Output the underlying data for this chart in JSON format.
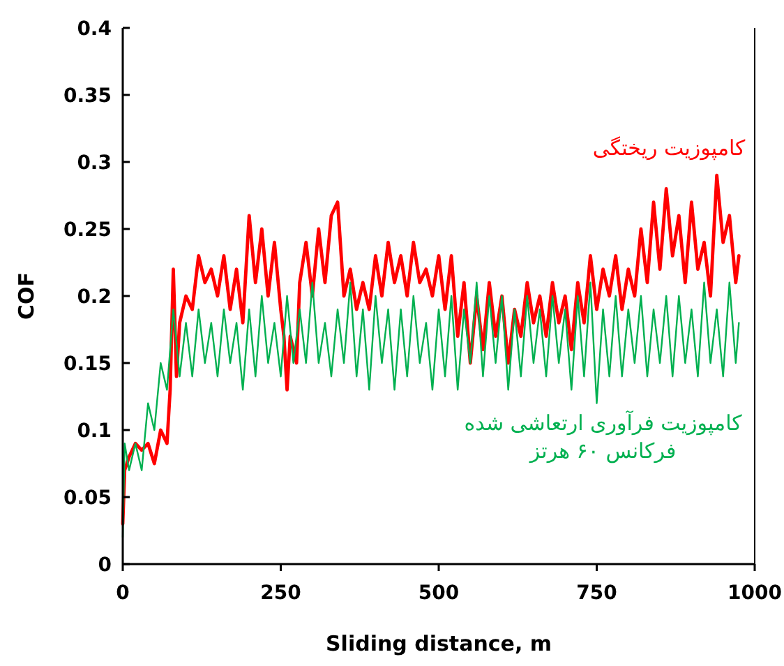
{
  "chart_data": {
    "type": "line",
    "xlabel": "Sliding distance, m",
    "ylabel": "COF",
    "xlim": [
      0,
      1000
    ],
    "ylim": [
      0,
      0.4
    ],
    "xticks": [
      0,
      250,
      500,
      750,
      1000
    ],
    "yticks": [
      0,
      0.05,
      0.1,
      0.15,
      0.2,
      0.25,
      0.3,
      0.35,
      0.4
    ],
    "grid": false,
    "marker": "none",
    "line_style": "solid",
    "series": [
      {
        "name": "کامپوزیت ریختگی",
        "color": "#ff0000",
        "x": [
          0,
          3,
          10,
          20,
          30,
          40,
          50,
          60,
          70,
          75,
          80,
          85,
          90,
          100,
          110,
          120,
          130,
          140,
          150,
          160,
          170,
          180,
          190,
          200,
          210,
          220,
          230,
          240,
          250,
          255,
          260,
          265,
          275,
          280,
          290,
          300,
          310,
          320,
          330,
          340,
          350,
          360,
          370,
          380,
          390,
          400,
          410,
          420,
          430,
          440,
          450,
          460,
          470,
          480,
          490,
          500,
          510,
          520,
          530,
          540,
          550,
          560,
          570,
          580,
          590,
          600,
          610,
          620,
          630,
          640,
          650,
          660,
          670,
          680,
          690,
          700,
          710,
          720,
          730,
          740,
          750,
          760,
          770,
          780,
          790,
          800,
          810,
          820,
          830,
          840,
          850,
          860,
          870,
          880,
          890,
          900,
          910,
          920,
          930,
          940,
          950,
          960,
          970,
          975
        ],
        "values": [
          0.03,
          0.07,
          0.08,
          0.09,
          0.085,
          0.09,
          0.075,
          0.1,
          0.09,
          0.13,
          0.22,
          0.14,
          0.18,
          0.2,
          0.19,
          0.23,
          0.21,
          0.22,
          0.2,
          0.23,
          0.19,
          0.22,
          0.18,
          0.26,
          0.21,
          0.25,
          0.2,
          0.24,
          0.19,
          0.17,
          0.13,
          0.17,
          0.15,
          0.21,
          0.24,
          0.2,
          0.25,
          0.21,
          0.26,
          0.27,
          0.2,
          0.22,
          0.19,
          0.21,
          0.19,
          0.23,
          0.2,
          0.24,
          0.21,
          0.23,
          0.2,
          0.24,
          0.21,
          0.22,
          0.2,
          0.23,
          0.19,
          0.23,
          0.17,
          0.21,
          0.15,
          0.2,
          0.16,
          0.21,
          0.17,
          0.2,
          0.15,
          0.19,
          0.17,
          0.21,
          0.18,
          0.2,
          0.17,
          0.21,
          0.18,
          0.2,
          0.16,
          0.21,
          0.18,
          0.23,
          0.19,
          0.22,
          0.2,
          0.23,
          0.19,
          0.22,
          0.2,
          0.25,
          0.21,
          0.27,
          0.22,
          0.28,
          0.23,
          0.26,
          0.21,
          0.27,
          0.22,
          0.24,
          0.2,
          0.29,
          0.24,
          0.26,
          0.21,
          0.23
        ]
      },
      {
        "name": "کامپوزیت فرآوری ارتعاشی شده\nفرکانس ۶۰ هرتز",
        "color": "#00b050",
        "x": [
          0,
          3,
          10,
          20,
          30,
          40,
          50,
          60,
          70,
          80,
          90,
          100,
          110,
          120,
          130,
          140,
          150,
          160,
          170,
          180,
          190,
          200,
          210,
          220,
          230,
          240,
          250,
          260,
          270,
          280,
          290,
          300,
          310,
          320,
          330,
          340,
          350,
          360,
          370,
          380,
          390,
          400,
          410,
          420,
          430,
          440,
          450,
          460,
          470,
          480,
          490,
          500,
          510,
          520,
          530,
          540,
          550,
          560,
          570,
          580,
          590,
          600,
          610,
          620,
          630,
          640,
          650,
          660,
          670,
          680,
          690,
          700,
          710,
          720,
          730,
          740,
          750,
          760,
          770,
          780,
          790,
          800,
          810,
          820,
          830,
          840,
          850,
          860,
          870,
          880,
          890,
          900,
          910,
          920,
          930,
          940,
          950,
          960,
          970,
          975
        ],
        "values": [
          0.02,
          0.09,
          0.07,
          0.09,
          0.07,
          0.12,
          0.1,
          0.15,
          0.13,
          0.19,
          0.14,
          0.18,
          0.14,
          0.19,
          0.15,
          0.18,
          0.14,
          0.19,
          0.15,
          0.18,
          0.13,
          0.19,
          0.14,
          0.2,
          0.15,
          0.18,
          0.14,
          0.2,
          0.15,
          0.19,
          0.15,
          0.21,
          0.15,
          0.18,
          0.14,
          0.19,
          0.15,
          0.21,
          0.14,
          0.19,
          0.13,
          0.2,
          0.15,
          0.19,
          0.13,
          0.19,
          0.14,
          0.2,
          0.15,
          0.18,
          0.13,
          0.19,
          0.14,
          0.2,
          0.13,
          0.19,
          0.15,
          0.21,
          0.14,
          0.2,
          0.15,
          0.2,
          0.13,
          0.19,
          0.14,
          0.2,
          0.15,
          0.19,
          0.14,
          0.2,
          0.15,
          0.19,
          0.13,
          0.2,
          0.14,
          0.21,
          0.12,
          0.19,
          0.14,
          0.2,
          0.14,
          0.19,
          0.15,
          0.2,
          0.14,
          0.19,
          0.15,
          0.2,
          0.14,
          0.2,
          0.15,
          0.19,
          0.14,
          0.21,
          0.15,
          0.19,
          0.14,
          0.21,
          0.15,
          0.18
        ]
      }
    ]
  }
}
